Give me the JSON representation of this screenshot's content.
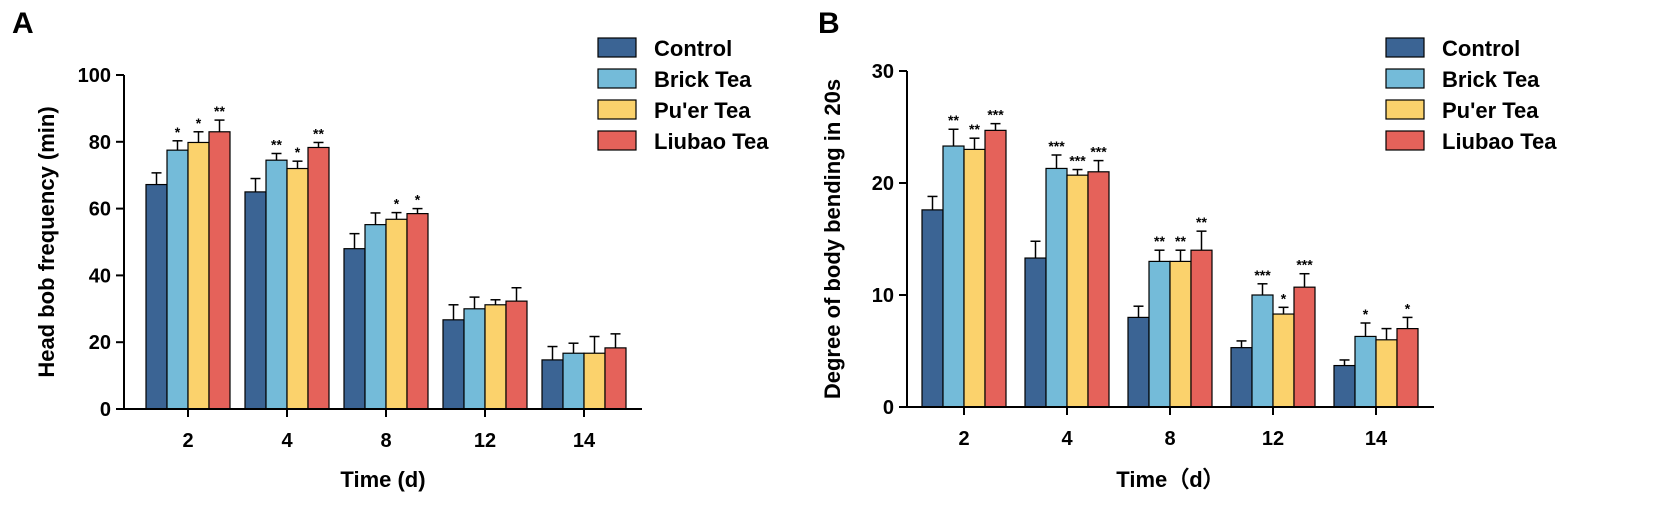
{
  "chart_data": [
    {
      "panel": "A",
      "type": "bar",
      "categories": [
        "2",
        "4",
        "8",
        "12",
        "14"
      ],
      "xlabel": "Time (d)",
      "ylabel": "Head bob frequency (min)",
      "ylim": [
        0,
        100
      ],
      "yticks": [
        0,
        20,
        40,
        60,
        80,
        100
      ],
      "series": [
        {
          "name": "Control",
          "color": "#3b6494",
          "values": [
            67.2,
            65.0,
            48.0,
            26.7,
            14.7
          ],
          "errors": [
            3.5,
            4.0,
            4.5,
            4.5,
            4.0
          ],
          "sig": [
            "",
            "",
            "",
            "",
            ""
          ]
        },
        {
          "name": "Brick Tea",
          "color": "#74bbd9",
          "values": [
            77.5,
            74.5,
            55.2,
            30.0,
            16.7
          ],
          "errors": [
            2.8,
            2.0,
            3.5,
            3.5,
            3.0
          ],
          "sig": [
            "*",
            "**",
            "",
            "",
            ""
          ]
        },
        {
          "name": "Pu'er Tea",
          "color": "#fbd26c",
          "values": [
            79.8,
            72.0,
            56.8,
            31.2,
            16.7
          ],
          "errors": [
            3.2,
            2.2,
            2.0,
            1.5,
            5.0
          ],
          "sig": [
            "*",
            "*",
            "*",
            "",
            ""
          ]
        },
        {
          "name": "Liubao Tea",
          "color": "#e5625a",
          "values": [
            83.0,
            78.3,
            58.5,
            32.3,
            18.3
          ],
          "errors": [
            3.5,
            1.5,
            1.5,
            4.0,
            4.2
          ],
          "sig": [
            "**",
            "**",
            "*",
            "",
            ""
          ]
        }
      ]
    },
    {
      "panel": "B",
      "type": "bar",
      "categories": [
        "2",
        "4",
        "8",
        "12",
        "14"
      ],
      "xlabel": "Time（d）",
      "ylabel": "Degree of body bending in 20s",
      "ylim": [
        0,
        30
      ],
      "yticks": [
        0,
        10,
        20,
        30
      ],
      "series": [
        {
          "name": "Control",
          "color": "#3b6494",
          "values": [
            17.6,
            13.3,
            8.0,
            5.3,
            3.7
          ],
          "errors": [
            1.2,
            1.5,
            1.0,
            0.6,
            0.5
          ],
          "sig": [
            "",
            "",
            "",
            "",
            ""
          ]
        },
        {
          "name": "Brick Tea",
          "color": "#74bbd9",
          "values": [
            23.3,
            21.3,
            13.0,
            10.0,
            6.3
          ],
          "errors": [
            1.5,
            1.2,
            1.0,
            1.0,
            1.2
          ],
          "sig": [
            "**",
            "***",
            "**",
            "***",
            "*"
          ]
        },
        {
          "name": "Pu'er Tea",
          "color": "#fbd26c",
          "values": [
            23.0,
            20.7,
            13.0,
            8.3,
            6.0
          ],
          "errors": [
            1.0,
            0.5,
            1.0,
            0.6,
            1.0
          ],
          "sig": [
            "**",
            "***",
            "**",
            "*",
            ""
          ]
        },
        {
          "name": "Liubao Tea",
          "color": "#e5625a",
          "values": [
            24.7,
            21.0,
            14.0,
            10.7,
            7.0
          ],
          "errors": [
            0.6,
            1.0,
            1.7,
            1.2,
            1.0
          ],
          "sig": [
            "***",
            "***",
            "**",
            "***",
            "*"
          ]
        }
      ]
    }
  ]
}
